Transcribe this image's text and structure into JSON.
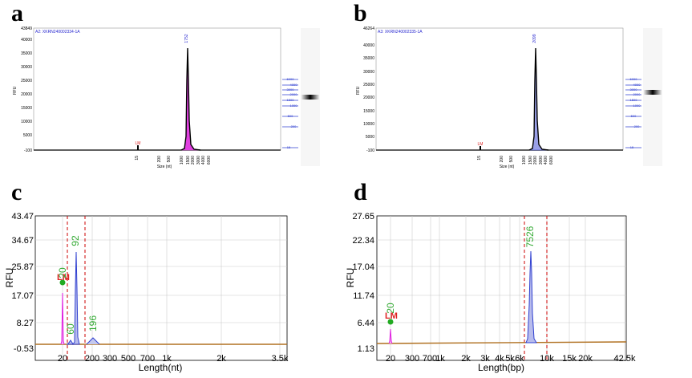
{
  "panels": {
    "a": "a",
    "b": "b",
    "c": "c",
    "d": "d"
  },
  "chart_data": [
    {
      "id": "a",
      "type": "line",
      "title": "A2: XKRN240002334-1A",
      "ylabel": "RFU",
      "xlabel": "Size (nt)",
      "yticks": [
        "43849",
        "40000",
        "35000",
        "30000",
        "25000",
        "20000",
        "15000",
        "10000",
        "5000",
        "-100"
      ],
      "xticks": [
        "15",
        "200",
        "500",
        "1000",
        "1500",
        "2000",
        "3000",
        "4000",
        "6000"
      ],
      "peaks": [
        {
          "label": "LM",
          "x": "15",
          "height": 2000
        },
        {
          "label": "1752",
          "x": "1752",
          "height": 36500
        }
      ],
      "ylim": [
        -100,
        43849
      ],
      "gel_ladder": [
        "6000",
        "4000",
        "3000",
        "2000",
        "1500",
        "1000",
        "500",
        "200",
        "15"
      ]
    },
    {
      "id": "b",
      "type": "line",
      "title": "A3: XKRN240002335-1A",
      "ylabel": "RFU",
      "xlabel": "Size (nt)",
      "yticks": [
        "46264",
        "40000",
        "35000",
        "30000",
        "25000",
        "20000",
        "15000",
        "10000",
        "5000",
        "-100"
      ],
      "xticks": [
        "15",
        "200",
        "500",
        "1000",
        "1500",
        "2000",
        "3000",
        "4000",
        "6000"
      ],
      "peaks": [
        {
          "label": "LM",
          "x": "15",
          "height": 1500
        },
        {
          "label": "2099",
          "x": "2099",
          "height": 38500
        }
      ],
      "ylim": [
        -100,
        46264
      ],
      "gel_ladder": [
        "6000",
        "4000",
        "3000",
        "2000",
        "1500",
        "1000",
        "500",
        "200",
        "15"
      ]
    },
    {
      "id": "c",
      "type": "line",
      "ylabel": "RFU",
      "xlabel": "Length(nt)",
      "yticks": [
        "43.47",
        "34.67",
        "25.87",
        "17.07",
        "8.27",
        "-0.53"
      ],
      "xticks": [
        "20",
        "200",
        "300",
        "500",
        "700",
        "1k",
        "2k",
        "3.5k"
      ],
      "peaks": [
        {
          "label": "20",
          "marker": "LM",
          "height": 20
        },
        {
          "label": "60",
          "height": 2
        },
        {
          "label": "92",
          "height": 31.5
        },
        {
          "label": "196",
          "height": 2.5
        }
      ],
      "ylim": [
        -0.53,
        43.47
      ]
    },
    {
      "id": "d",
      "type": "line",
      "ylabel": "RFU",
      "xlabel": "Length(bp)",
      "yticks": [
        "27.65",
        "22.34",
        "17.04",
        "11.74",
        "6.44",
        "1.13"
      ],
      "xticks": [
        "20",
        "300",
        "700",
        "1k",
        "2k",
        "3k",
        "4k",
        "5k",
        "6k",
        "10k",
        "15k",
        "20k",
        "42.5k"
      ],
      "peaks": [
        {
          "label": "20",
          "marker": "LM",
          "height": 6
        },
        {
          "label": "7526",
          "height": 20.7
        }
      ],
      "ylim": [
        1.13,
        27.65
      ]
    }
  ]
}
